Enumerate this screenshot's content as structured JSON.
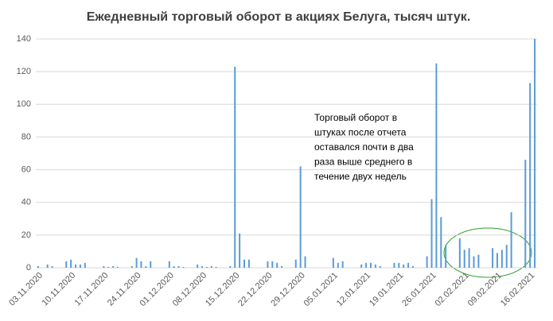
{
  "chart_data": {
    "type": "bar",
    "title": "Ежедневный торговый оборот в акциях Белуга, тысяч штук.",
    "annotation": [
      "Торговый оборот в",
      "штуках после отчета",
      "оставался почти в два",
      "раза выше среднего в",
      "течение двух недель"
    ],
    "categories": [
      "03.11.2020",
      null,
      null,
      null,
      null,
      null,
      null,
      "10.11.2020",
      null,
      null,
      null,
      null,
      null,
      null,
      "17.11.2020",
      null,
      null,
      null,
      null,
      null,
      null,
      "24.11.2020",
      null,
      null,
      null,
      null,
      null,
      null,
      "01.12.2020",
      null,
      null,
      null,
      null,
      null,
      null,
      "08.12.2020",
      null,
      null,
      null,
      null,
      null,
      null,
      "15.12.2020",
      null,
      null,
      null,
      null,
      null,
      null,
      "22.12.2020",
      null,
      null,
      null,
      null,
      null,
      null,
      "29.12.2020",
      null,
      null,
      null,
      null,
      null,
      null,
      "05.01.2021",
      null,
      null,
      null,
      null,
      null,
      null,
      "12.01.2021",
      null,
      null,
      null,
      null,
      null,
      null,
      "19.01.2021",
      null,
      null,
      null,
      null,
      null,
      null,
      "26.01.2021",
      null,
      null,
      null,
      null,
      null,
      null,
      "02.02.2021",
      null,
      null,
      null,
      null,
      null,
      null,
      "09.02.2021",
      null,
      null,
      null,
      null,
      null,
      null,
      "16.02.2021",
      null
    ],
    "values": [
      1,
      0,
      2,
      1,
      0,
      0,
      4,
      5,
      2,
      2,
      3,
      0,
      0,
      0,
      1,
      0.5,
      1,
      0.5,
      0,
      0,
      1,
      6,
      4,
      1,
      4,
      0,
      0,
      0,
      4,
      1,
      1,
      0.5,
      0,
      0,
      2,
      1,
      0.5,
      1,
      0.5,
      0,
      0,
      1,
      123,
      21,
      5,
      5,
      0,
      0,
      0,
      4,
      4,
      3,
      1,
      0,
      0,
      5,
      62,
      7,
      0,
      0,
      0,
      0,
      0,
      6,
      3,
      4,
      0,
      0,
      0,
      2,
      3,
      3,
      2,
      1,
      0,
      0,
      3,
      3,
      2,
      3,
      1,
      0,
      0,
      7,
      42,
      125,
      31,
      14,
      0,
      0,
      18,
      11,
      12,
      7,
      8,
      0,
      0,
      12,
      9,
      11,
      14,
      34,
      0,
      0,
      66,
      113,
      140
    ],
    "color": "#5b9bd5",
    "ylim": [
      0,
      140
    ],
    "yticks": [
      0,
      20,
      40,
      60,
      80,
      100,
      120,
      140
    ],
    "grid": true
  }
}
